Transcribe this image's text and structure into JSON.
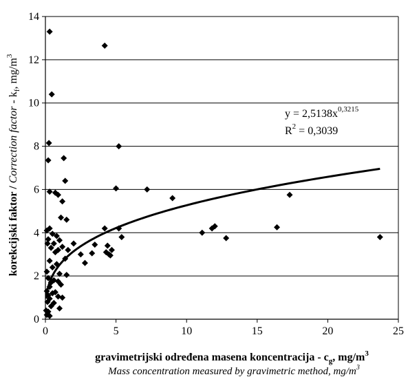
{
  "chart_data": {
    "type": "scatter",
    "xlim": [
      0,
      25
    ],
    "ylim": [
      0,
      14
    ],
    "x_ticks": [
      "0",
      "5",
      "10",
      "15",
      "20",
      "25"
    ],
    "y_ticks": [
      "0",
      "2",
      "4",
      "6",
      "8",
      "10",
      "12",
      "14"
    ],
    "grid": "horizontal",
    "ylabel": {
      "part1": "korekcijski faktor / ",
      "part2": "Correction factor",
      "part3": " - k",
      "sub": "f",
      "part4": ", mg/m",
      "sup": "3"
    },
    "xlabel": {
      "part1": "gravimetrijski određena masena koncentracija - c",
      "sub": "g",
      "part2": ", mg/m",
      "sup": "3"
    },
    "xlabel2": {
      "text": "Mass concentration measured by gravimetric method, mg/m",
      "sup": "3"
    },
    "annotation": {
      "eq_prefix": "y = 2,5138x",
      "eq_exp": "0,3215",
      "r2_prefix": "R",
      "r2_exp": "2",
      "r2_value": " = 0,3039"
    },
    "trendline": {
      "type": "power",
      "a": 2.5138,
      "b": 0.3215,
      "x_min": 0.05,
      "x_max": 23.7
    },
    "points": [
      {
        "x": 0.3,
        "y": 13.3
      },
      {
        "x": 4.2,
        "y": 12.65
      },
      {
        "x": 0.45,
        "y": 10.4
      },
      {
        "x": 0.25,
        "y": 8.15
      },
      {
        "x": 5.2,
        "y": 8.0
      },
      {
        "x": 1.3,
        "y": 7.45
      },
      {
        "x": 0.2,
        "y": 7.35
      },
      {
        "x": 1.4,
        "y": 6.4
      },
      {
        "x": 5.0,
        "y": 6.05
      },
      {
        "x": 7.2,
        "y": 6.0
      },
      {
        "x": 0.3,
        "y": 5.9
      },
      {
        "x": 0.7,
        "y": 5.85
      },
      {
        "x": 0.9,
        "y": 5.75
      },
      {
        "x": 17.3,
        "y": 5.75
      },
      {
        "x": 9.0,
        "y": 5.6
      },
      {
        "x": 1.2,
        "y": 5.45
      },
      {
        "x": 1.5,
        "y": 4.6
      },
      {
        "x": 1.1,
        "y": 4.7
      },
      {
        "x": 0.3,
        "y": 4.2
      },
      {
        "x": 4.2,
        "y": 4.2
      },
      {
        "x": 5.2,
        "y": 4.2
      },
      {
        "x": 16.4,
        "y": 4.25
      },
      {
        "x": 12.0,
        "y": 4.3
      },
      {
        "x": 11.8,
        "y": 4.2
      },
      {
        "x": 11.1,
        "y": 4.0
      },
      {
        "x": 0.1,
        "y": 4.1
      },
      {
        "x": 0.5,
        "y": 3.95
      },
      {
        "x": 0.8,
        "y": 3.85
      },
      {
        "x": 5.4,
        "y": 3.8
      },
      {
        "x": 12.8,
        "y": 3.75
      },
      {
        "x": 23.7,
        "y": 3.8
      },
      {
        "x": 0.2,
        "y": 3.7
      },
      {
        "x": 1.0,
        "y": 3.65
      },
      {
        "x": 0.15,
        "y": 3.5
      },
      {
        "x": 0.6,
        "y": 3.5
      },
      {
        "x": 2.0,
        "y": 3.5
      },
      {
        "x": 3.5,
        "y": 3.45
      },
      {
        "x": 4.4,
        "y": 3.4
      },
      {
        "x": 1.2,
        "y": 3.35
      },
      {
        "x": 0.4,
        "y": 3.3
      },
      {
        "x": 0.9,
        "y": 3.2
      },
      {
        "x": 1.6,
        "y": 3.2
      },
      {
        "x": 4.7,
        "y": 3.2
      },
      {
        "x": 4.3,
        "y": 3.1
      },
      {
        "x": 0.7,
        "y": 3.1
      },
      {
        "x": 2.5,
        "y": 3.0
      },
      {
        "x": 3.3,
        "y": 3.05
      },
      {
        "x": 4.5,
        "y": 3.0
      },
      {
        "x": 4.6,
        "y": 2.95
      },
      {
        "x": 1.4,
        "y": 2.8
      },
      {
        "x": 0.3,
        "y": 2.7
      },
      {
        "x": 2.8,
        "y": 2.6
      },
      {
        "x": 0.8,
        "y": 2.55
      },
      {
        "x": 0.5,
        "y": 2.4
      },
      {
        "x": 0.1,
        "y": 2.2
      },
      {
        "x": 1.0,
        "y": 2.1
      },
      {
        "x": 1.5,
        "y": 2.05
      },
      {
        "x": 0.2,
        "y": 1.9
      },
      {
        "x": 0.6,
        "y": 1.8
      },
      {
        "x": 0.9,
        "y": 1.75
      },
      {
        "x": 0.4,
        "y": 1.7
      },
      {
        "x": 1.1,
        "y": 1.6
      },
      {
        "x": 0.3,
        "y": 1.5
      },
      {
        "x": 0.1,
        "y": 1.3
      },
      {
        "x": 0.5,
        "y": 1.2
      },
      {
        "x": 0.7,
        "y": 1.25
      },
      {
        "x": 0.2,
        "y": 1.1
      },
      {
        "x": 0.9,
        "y": 1.05
      },
      {
        "x": 1.2,
        "y": 1.0
      },
      {
        "x": 0.3,
        "y": 0.95
      },
      {
        "x": 0.15,
        "y": 0.8
      },
      {
        "x": 0.6,
        "y": 0.75
      },
      {
        "x": 0.4,
        "y": 0.6
      },
      {
        "x": 1.0,
        "y": 0.5
      },
      {
        "x": 0.05,
        "y": 0.4
      },
      {
        "x": 0.2,
        "y": 0.35
      },
      {
        "x": 0.1,
        "y": 0.2
      },
      {
        "x": 0.3,
        "y": 0.15
      }
    ]
  }
}
